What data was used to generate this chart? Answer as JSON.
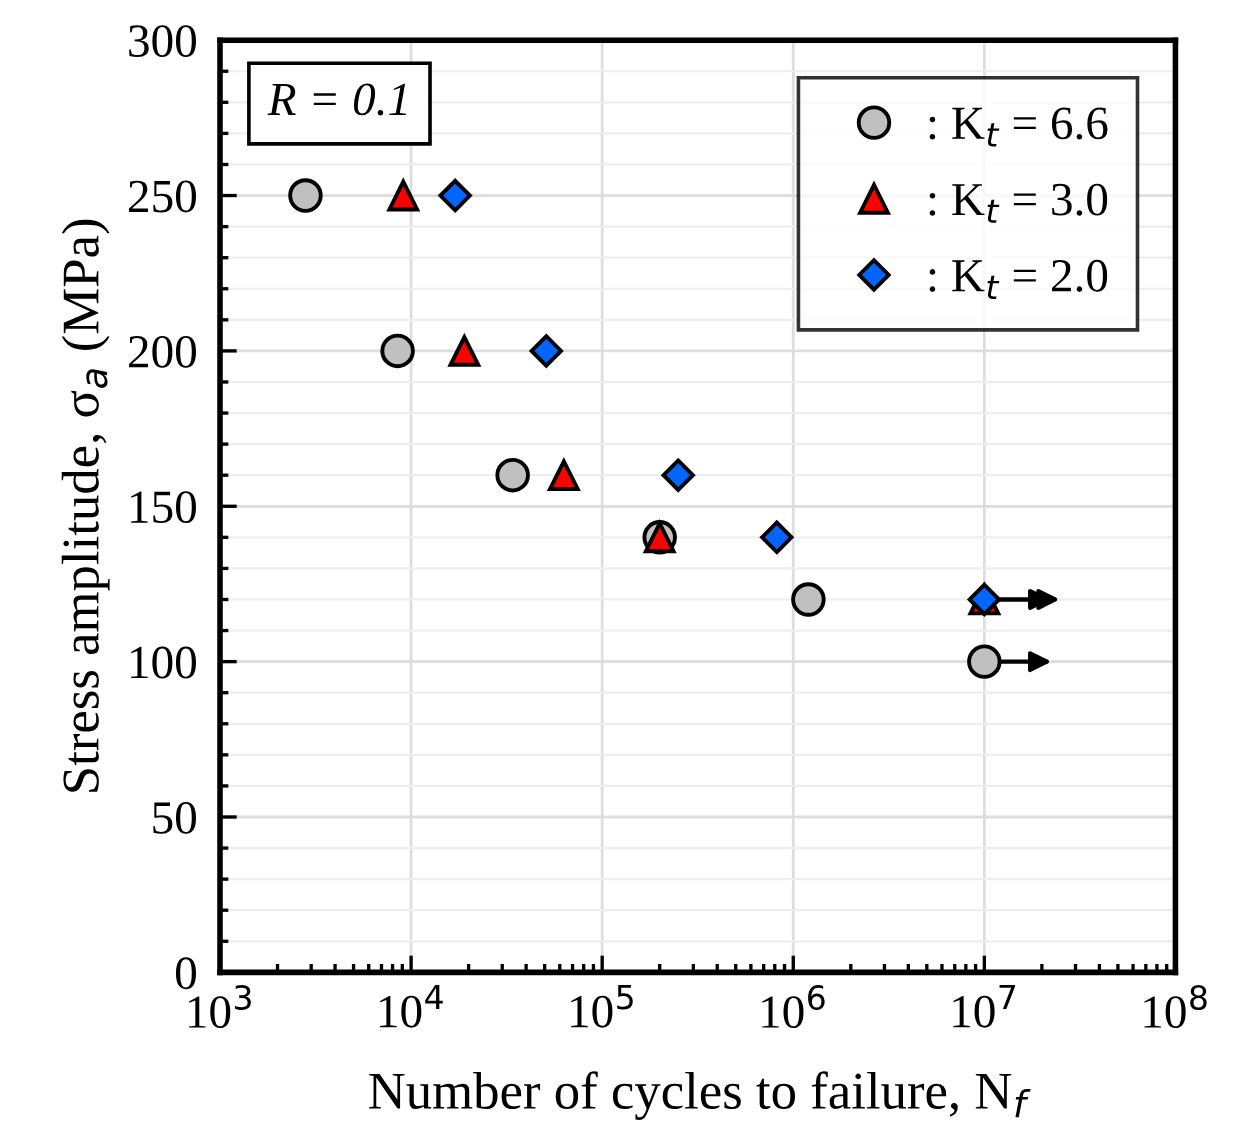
{
  "chart_data": {
    "type": "scatter",
    "xlabel": "Number of cycles to failure, N$_{f}$",
    "ylabel": "Stress amplitude, σ$_{a}$ (MPa)",
    "log": "x",
    "xlim": [
      1000,
      100000000
    ],
    "xticks": [
      {
        "value": 1000,
        "label": "10$^{3}$"
      },
      {
        "value": 10000,
        "label": "10$^{4}$"
      },
      {
        "value": 100000,
        "label": "10$^{5}$"
      },
      {
        "value": 1000000,
        "label": "10$^{6}$"
      },
      {
        "value": 10000000,
        "label": "10$^{7}$"
      },
      {
        "value": 100000000,
        "label": "10$^{8}$"
      }
    ],
    "ylim": [
      0,
      300
    ],
    "yticks": [
      0,
      50,
      100,
      150,
      200,
      250,
      300
    ],
    "grid": true,
    "legend": "top right",
    "annotations": [
      "R = 0.1"
    ],
    "series": [
      {
        "name": ": K$_{t}$ = 6.6",
        "color": "#c0c0c0",
        "marker": "circle",
        "x": [
          2800,
          8500,
          34000,
          200000,
          1200000,
          10000000
        ],
        "values": [
          250,
          200,
          160,
          140,
          120,
          100
        ]
      },
      {
        "name": ": K$_{t}$ = 3.0",
        "color": "#ff0000",
        "marker": "triangle",
        "x": [
          9100,
          19000,
          63000,
          200000,
          10000000
        ],
        "values": [
          250,
          200,
          160,
          140,
          120
        ]
      },
      {
        "name": ": K$_{t}$ = 2.0",
        "color": "#0066ff",
        "marker": "diamond",
        "x": [
          17000,
          51000,
          250000,
          820000,
          10000000
        ],
        "values": [
          250,
          200,
          160,
          140,
          120
        ]
      }
    ]
  }
}
